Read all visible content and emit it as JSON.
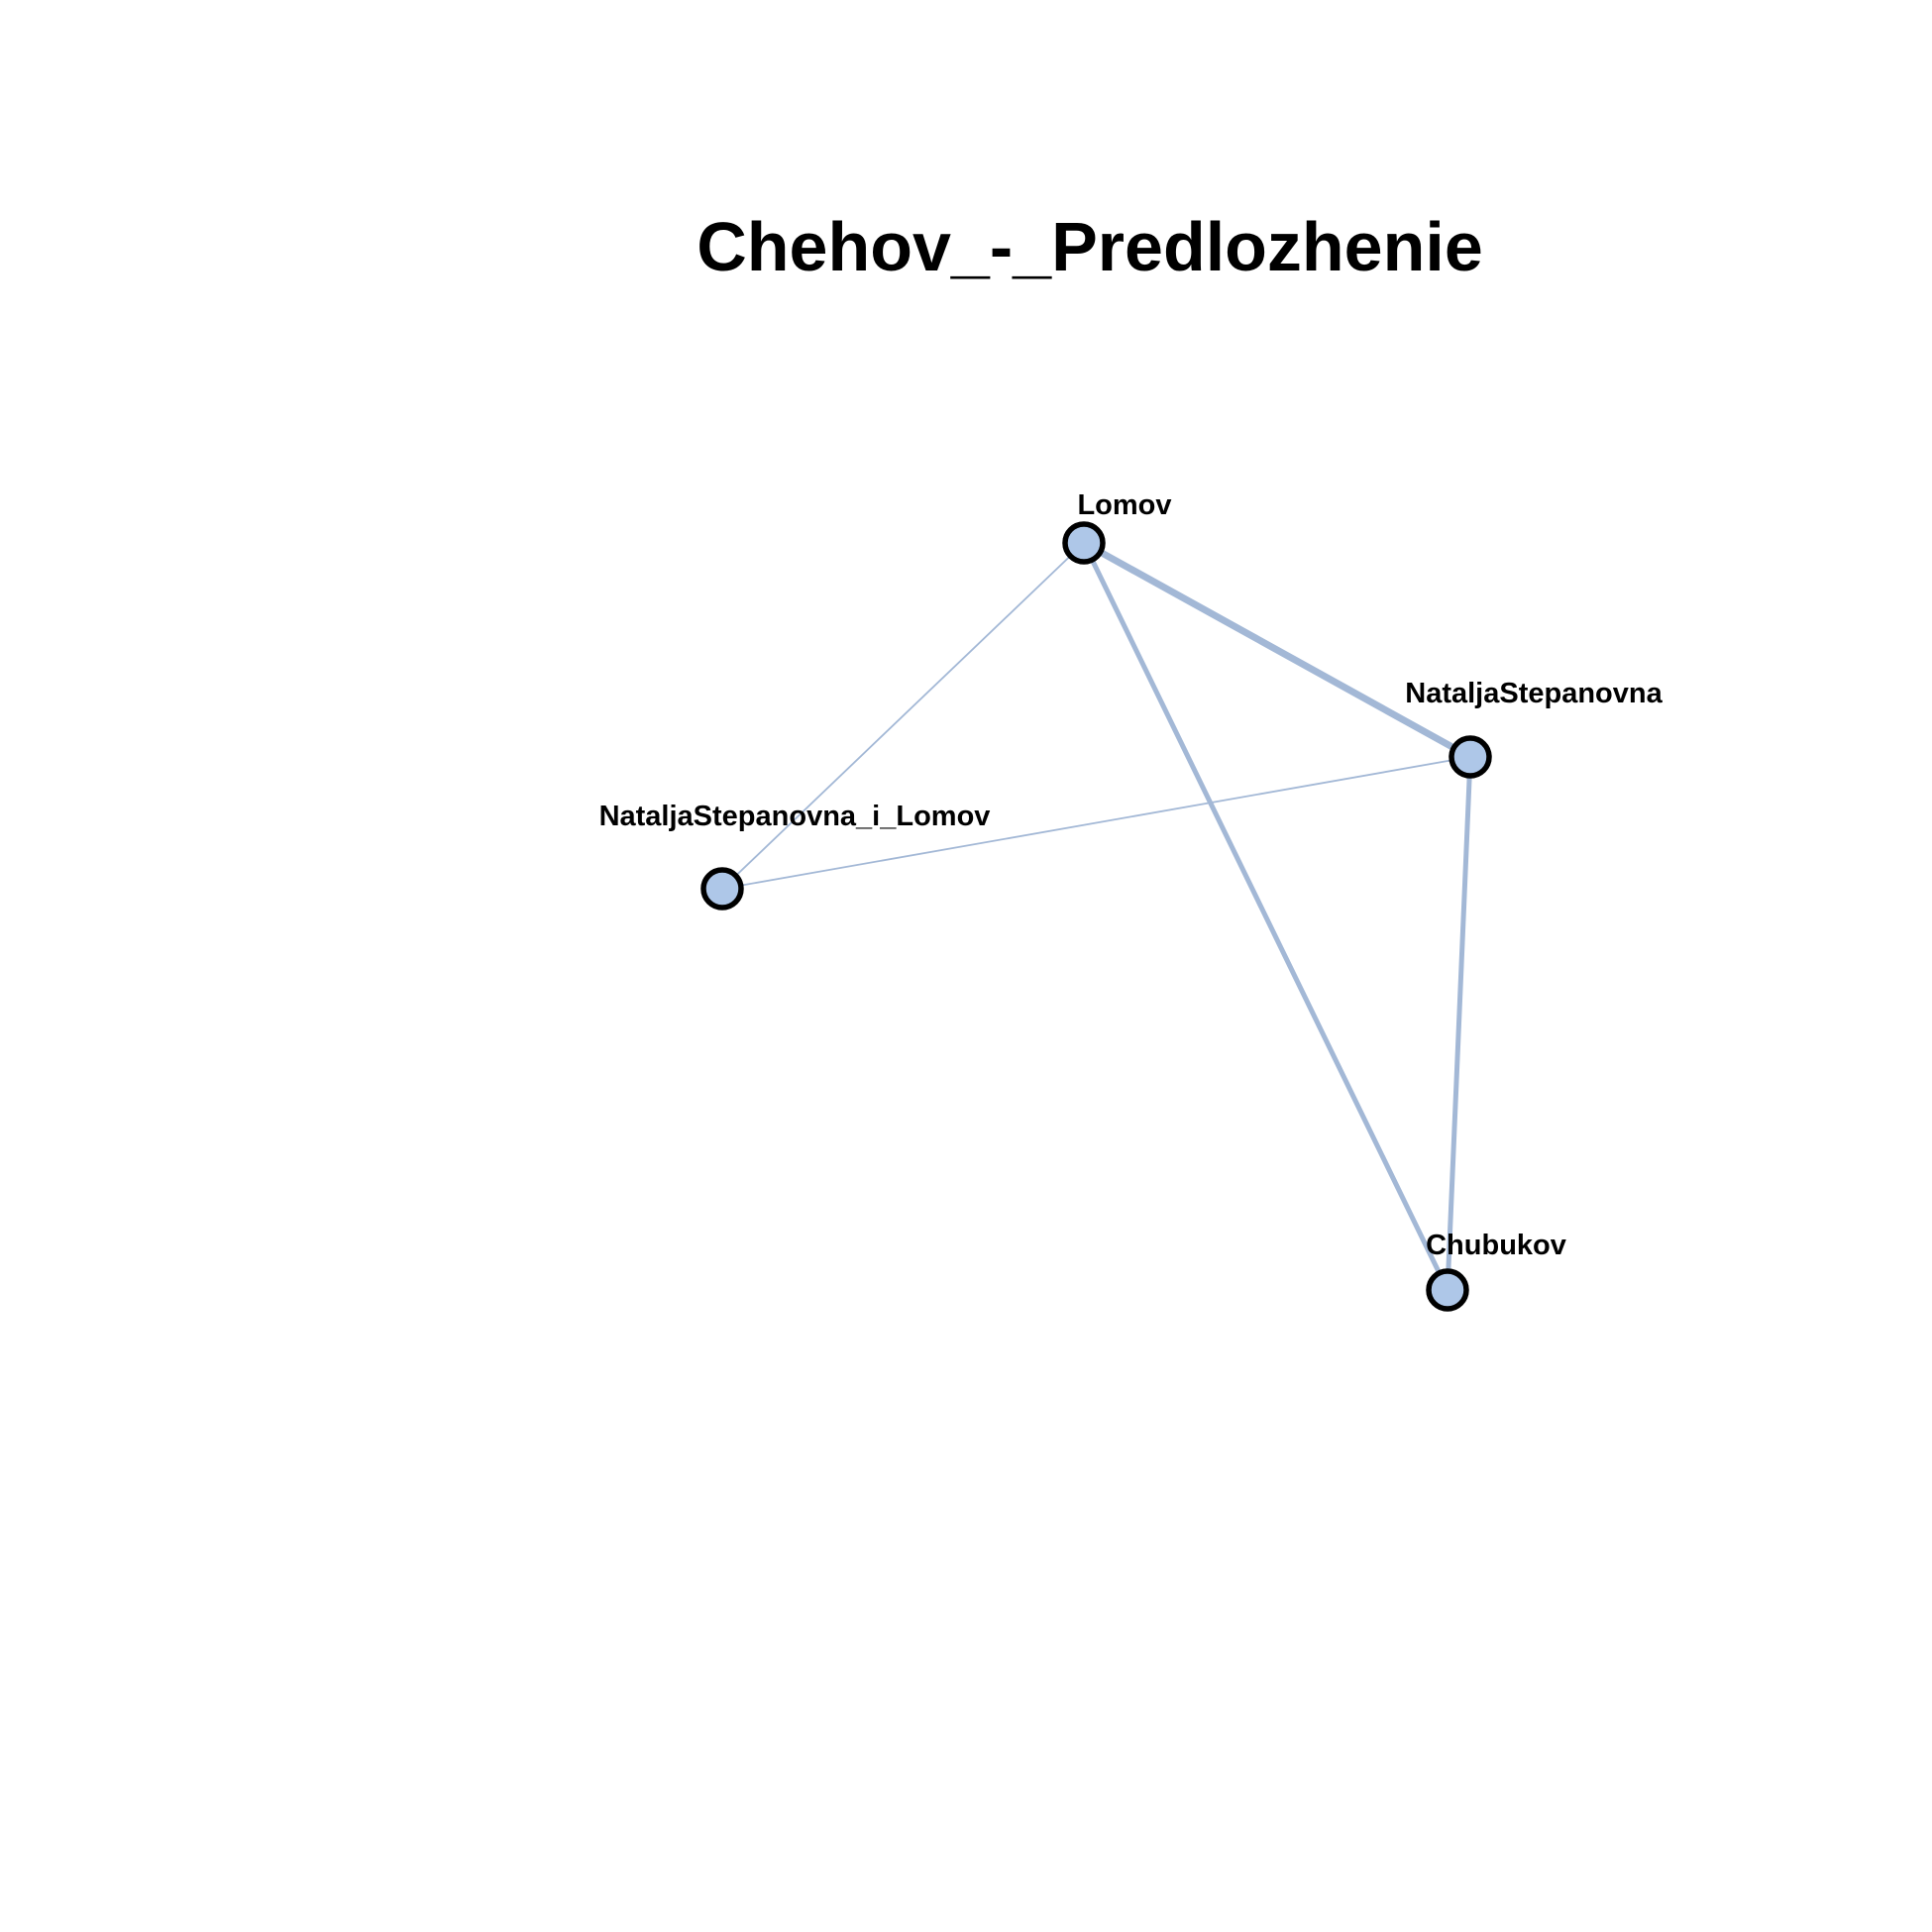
{
  "title": "Chehov_-_Predlozhenie",
  "colors": {
    "node_fill": "#aec7e8",
    "node_stroke": "#000000",
    "edge": "#a3b8d6",
    "background": "#ffffff"
  },
  "nodes": [
    {
      "id": "lomov",
      "label": "Lomov"
    },
    {
      "id": "natalja",
      "label": "NataljaStepanovna"
    },
    {
      "id": "natalja_i_lomov",
      "label": "NataljaStepanovna_i_Lomov"
    },
    {
      "id": "chubukov",
      "label": "Chubukov"
    }
  ],
  "edges": [
    {
      "source": "lomov",
      "target": "natalja",
      "weight": 3
    },
    {
      "source": "lomov",
      "target": "chubukov",
      "weight": 2
    },
    {
      "source": "natalja",
      "target": "chubukov",
      "weight": 2
    },
    {
      "source": "lomov",
      "target": "natalja_i_lomov",
      "weight": 1
    },
    {
      "source": "natalja",
      "target": "natalja_i_lomov",
      "weight": 1
    }
  ]
}
